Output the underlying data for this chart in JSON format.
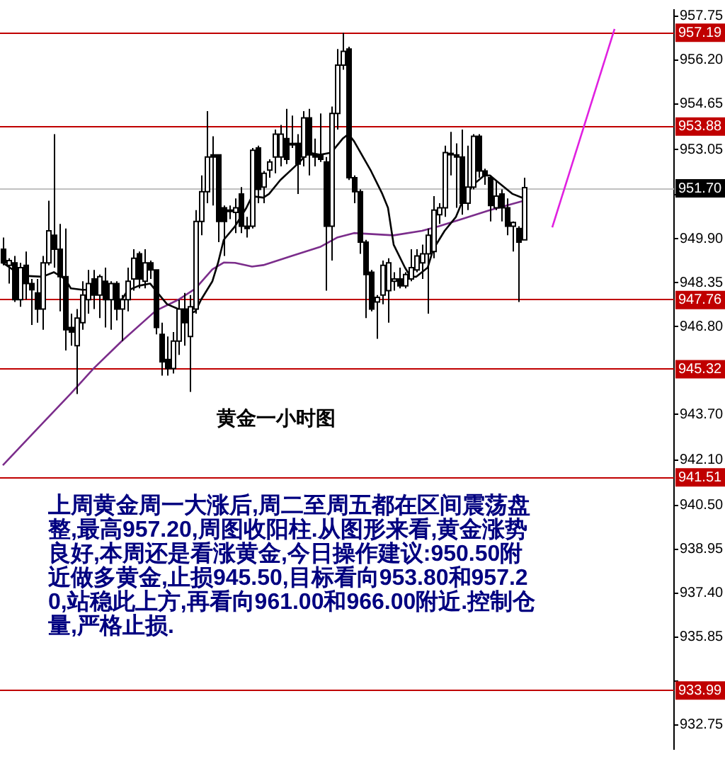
{
  "chart_data": {
    "type": "candlestick",
    "title": "黄金一小时图",
    "annotations": [
      "上周黄金周一大涨后,周二至周五都在区间震荡盘整,最高957.20,周图收阳柱.从图形来看,黄金涨势良好,本周还是看涨黄金,今日操作建议:950.50附近做多黄金,止损945.50,目标看向953.80和957.20,站稳此上方,再看向961.00和966.00附近.控制仓量,严格止损."
    ],
    "categories": [
      null,
      null,
      null,
      null,
      null,
      null,
      null,
      null,
      null,
      null,
      null,
      null,
      null,
      null,
      null,
      null,
      null,
      null,
      null,
      null,
      null,
      null,
      null,
      null,
      null,
      null,
      null,
      null,
      null,
      null,
      null,
      null,
      null,
      null,
      null,
      null,
      null,
      null,
      null,
      null,
      null,
      null,
      null,
      null,
      null,
      null,
      null,
      null,
      null,
      null,
      null,
      null,
      null,
      null,
      null,
      null,
      null,
      null,
      null,
      null,
      null,
      null,
      null,
      null,
      null,
      null,
      null,
      null,
      null,
      null,
      null,
      null,
      null,
      null,
      null,
      null,
      null,
      null,
      null,
      null,
      null,
      null,
      null,
      null,
      null,
      null,
      null,
      null,
      null,
      null,
      null,
      null,
      null,
      null,
      null,
      null,
      null,
      null,
      null,
      null,
      null,
      null,
      null,
      null,
      null,
      null,
      null,
      null,
      null,
      null,
      null,
      null,
      null,
      null,
      null,
      null,
      null,
      null,
      null
    ],
    "ohlc": [
      [
        949.53,
        949.94,
        948.96,
        949.05
      ],
      [
        948.96,
        949.21,
        948.32,
        949.13
      ],
      [
        949.05,
        949.29,
        947.67,
        947.75
      ],
      [
        947.75,
        949.05,
        947.5,
        948.88
      ],
      [
        948.96,
        949.45,
        947.75,
        948.32
      ],
      [
        948.32,
        948.48,
        946.86,
        948.1
      ],
      [
        947.99,
        948.48,
        946.94,
        947.42
      ],
      [
        947.42,
        949.29,
        946.69,
        949.05
      ],
      [
        949.05,
        951.24,
        948.96,
        950.18
      ],
      [
        950.02,
        953.59,
        948.88,
        949.53
      ],
      [
        949.53,
        950.42,
        947.34,
        948.56
      ],
      [
        948.56,
        950.26,
        945.96,
        946.69
      ],
      [
        946.77,
        947.26,
        946.13,
        946.61
      ],
      [
        946.13,
        947.42,
        944.42,
        947.1
      ],
      [
        946.94,
        948.4,
        946.69,
        947.91
      ],
      [
        947.75,
        948.8,
        947.26,
        948.32
      ],
      [
        948.48,
        948.8,
        947.42,
        947.91
      ],
      [
        947.91,
        948.64,
        947.1,
        948.56
      ],
      [
        948.4,
        948.88,
        946.77,
        947.75
      ],
      [
        947.75,
        948.4,
        946.69,
        948.32
      ],
      [
        948.32,
        948.4,
        947.02,
        947.42
      ],
      [
        947.42,
        947.91,
        946.29,
        947.75
      ],
      [
        947.75,
        948.88,
        947.34,
        948.4
      ],
      [
        948.48,
        949.53,
        948.07,
        949.21
      ],
      [
        949.37,
        949.45,
        948.15,
        948.48
      ],
      [
        948.4,
        949.53,
        948.15,
        949.05
      ],
      [
        949.05,
        949.13,
        948.48,
        948.8
      ],
      [
        948.8,
        948.8,
        946.53,
        946.77
      ],
      [
        946.53,
        946.94,
        945.07,
        945.56
      ],
      [
        945.64,
        946.45,
        945.07,
        945.32
      ],
      [
        945.32,
        946.61,
        945.15,
        946.29
      ],
      [
        946.29,
        947.75,
        945.8,
        947.42
      ],
      [
        947.42,
        947.99,
        946.13,
        946.94
      ],
      [
        946.45,
        947.91,
        944.5,
        947.5
      ],
      [
        947.42,
        950.91,
        947.26,
        950.51
      ],
      [
        950.51,
        952.13,
        950.02,
        951.56
      ],
      [
        951.56,
        954.4,
        951.15,
        952.78
      ],
      [
        952.86,
        953.51,
        951.07,
        952.78
      ],
      [
        952.86,
        952.86,
        949.78,
        950.51
      ],
      [
        950.99,
        951.07,
        949.29,
        950.51
      ],
      [
        950.91,
        951.07,
        950.59,
        950.91
      ],
      [
        950.83,
        951.32,
        950.1,
        950.99
      ],
      [
        951.48,
        951.72,
        950.1,
        950.34
      ],
      [
        950.34,
        950.67,
        949.94,
        950.26
      ],
      [
        950.34,
        953.1,
        950.26,
        953.02
      ],
      [
        953.1,
        953.18,
        951.15,
        951.64
      ],
      [
        951.72,
        952.29,
        951.15,
        952.21
      ],
      [
        952.32,
        952.7,
        952.05,
        952.61
      ],
      [
        952.78,
        953.75,
        952.21,
        953.59
      ],
      [
        952.78,
        953.91,
        952.45,
        953.59
      ],
      [
        953.43,
        954.48,
        952.53,
        952.7
      ],
      [
        953.26,
        954.24,
        953.1,
        953.26
      ],
      [
        953.26,
        953.59,
        951.48,
        952.53
      ],
      [
        952.78,
        954.4,
        952.45,
        954.16
      ],
      [
        954.16,
        954.48,
        952.13,
        952.86
      ],
      [
        952.86,
        953.43,
        952.45,
        952.78
      ],
      [
        952.86,
        954.32,
        952.61,
        952.7
      ],
      [
        952.61,
        952.78,
        948.07,
        950.34
      ],
      [
        950.34,
        954.56,
        949.13,
        954.32
      ],
      [
        954.32,
        956.59,
        953.75,
        956.02
      ],
      [
        956.02,
        957.16,
        955.86,
        956.51
      ],
      [
        956.59,
        956.67,
        951.97,
        952.05
      ],
      [
        952.05,
        952.13,
        951.15,
        951.56
      ],
      [
        951.56,
        951.64,
        949.37,
        949.78
      ],
      [
        949.78,
        949.86,
        947.1,
        948.64
      ],
      [
        948.72,
        948.8,
        947.34,
        947.42
      ],
      [
        947.67,
        947.91,
        946.37,
        947.83
      ],
      [
        947.91,
        949.13,
        947.59,
        948.96
      ],
      [
        948.07,
        949.21,
        946.94,
        949.05
      ],
      [
        948.4,
        948.72,
        948.07,
        948.48
      ],
      [
        948.48,
        948.88,
        948.15,
        948.24
      ],
      [
        948.24,
        948.72,
        948.15,
        948.64
      ],
      [
        948.48,
        949.53,
        948.4,
        948.88
      ],
      [
        948.8,
        949.53,
        948.72,
        949.29
      ],
      [
        949.05,
        949.69,
        948.48,
        949.37
      ],
      [
        949.37,
        950.26,
        947.26,
        950.02
      ],
      [
        949.45,
        951.4,
        949.21,
        950.91
      ],
      [
        950.75,
        951.15,
        950.42,
        950.99
      ],
      [
        950.99,
        953.18,
        950.67,
        952.94
      ],
      [
        952.91,
        953.67,
        952.13,
        952.91
      ],
      [
        952.86,
        953.26,
        950.99,
        952.78
      ],
      [
        952.78,
        953.75,
        950.75,
        951.15
      ],
      [
        951.15,
        953.18,
        950.91,
        951.72
      ],
      [
        951.72,
        953.59,
        951.64,
        953.51
      ],
      [
        953.51,
        953.59,
        952.05,
        952.29
      ],
      [
        952.29,
        952.37,
        951.8,
        952.13
      ],
      [
        952.05,
        952.13,
        950.51,
        951.07
      ],
      [
        950.99,
        951.97,
        950.91,
        951.4
      ],
      [
        951.48,
        951.64,
        950.51,
        950.99
      ],
      [
        950.99,
        951.32,
        950.02,
        950.34
      ],
      [
        950.34,
        950.51,
        949.45,
        950.47
      ],
      [
        950.26,
        950.34,
        947.67,
        949.78
      ],
      [
        949.86,
        952.05,
        949.86,
        951.7
      ],
      null,
      null,
      null,
      null,
      null,
      null,
      null,
      null,
      null,
      null,
      null,
      null,
      null,
      null,
      null,
      null,
      null,
      null,
      null,
      null,
      null,
      null,
      null,
      null,
      null,
      null
    ],
    "series": [
      {
        "type": "line",
        "color": "#000000",
        "values": [
          949.05,
          null,
          null,
          948.64,
          948.59,
          null,
          null,
          948.56,
          null,
          948.72,
          null,
          948.48,
          948.15,
          null,
          948.1,
          null,
          null,
          948.1,
          null,
          947.83,
          null,
          947.75,
          948.07,
          null,
          948.24,
          null,
          948.32,
          null,
          947.83,
          947.59,
          null,
          947.42,
          null,
          947.26,
          947.34,
          947.75,
          null,
          948.4,
          949.05,
          949.86,
          null,
          950.34,
          null,
          950.99,
          951.4,
          null,
          951.35,
          951.48,
          null,
          951.97,
          null,
          null,
          952.53,
          null,
          952.94,
          null,
          952.86,
          null,
          952.94,
          null,
          953.43,
          953.59,
          953.34,
          null,
          null,
          952.29,
          null,
          951.48,
          950.99,
          949.69,
          null,
          948.88,
          948.56,
          948.56,
          null,
          948.88,
          949.53,
          null,
          950.18,
          null,
          950.67,
          951.15,
          null,
          951.8,
          null,
          952.13,
          952.13,
          null,
          951.8,
          null,
          951.48,
          null,
          951.32,
          null,
          null,
          null,
          null,
          null,
          null,
          null,
          null,
          null,
          null,
          null,
          null,
          null,
          null,
          null,
          null,
          null,
          null,
          null,
          null,
          null,
          null,
          null,
          null,
          null,
          null
        ]
      },
      {
        "type": "line",
        "color": "#7b2d8b",
        "values": [
          941.91,
          null,
          null,
          null,
          null,
          null,
          943.18,
          null,
          null,
          null,
          null,
          null,
          944.44,
          null,
          null,
          null,
          945.32,
          null,
          null,
          null,
          null,
          946.29,
          null,
          null,
          null,
          null,
          null,
          947.36,
          null,
          null,
          null,
          947.75,
          null,
          null,
          948.14,
          null,
          null,
          948.82,
          null,
          949.06,
          null,
          949.05,
          null,
          null,
          948.92,
          null,
          948.97,
          null,
          null,
          null,
          null,
          949.29,
          null,
          null,
          null,
          null,
          949.61,
          null,
          null,
          949.94,
          null,
          null,
          950.1,
          null,
          null,
          null,
          null,
          null,
          null,
          950.02,
          null,
          null,
          null,
          null,
          950.18,
          null,
          null,
          950.34,
          null,
          null,
          null,
          950.59,
          null,
          null,
          null,
          null,
          950.91,
          null,
          null,
          null,
          null,
          null,
          951.24,
          null,
          null,
          null,
          null,
          null,
          null,
          null,
          null,
          null,
          null,
          null,
          null,
          null,
          null,
          null,
          null,
          null,
          null,
          null,
          null,
          null,
          null,
          null,
          null,
          null,
          null
        ]
      },
      {
        "type": "line",
        "color": "#e020e0",
        "values": [
          null,
          null,
          null,
          null,
          null,
          null,
          null,
          null,
          null,
          null,
          null,
          null,
          null,
          null,
          null,
          null,
          null,
          null,
          null,
          null,
          null,
          null,
          null,
          null,
          null,
          null,
          null,
          null,
          null,
          null,
          null,
          null,
          null,
          null,
          null,
          null,
          null,
          null,
          null,
          null,
          null,
          null,
          null,
          null,
          null,
          null,
          null,
          null,
          null,
          null,
          null,
          null,
          null,
          null,
          null,
          null,
          null,
          null,
          null,
          null,
          null,
          null,
          null,
          null,
          null,
          null,
          null,
          null,
          null,
          null,
          null,
          null,
          null,
          null,
          null,
          null,
          null,
          null,
          null,
          null,
          null,
          null,
          null,
          null,
          null,
          null,
          null,
          null,
          null,
          null,
          null,
          null,
          null,
          null,
          null,
          null,
          null,
          950.3,
          null,
          null,
          null,
          null,
          null,
          null,
          null,
          null,
          null,
          null,
          957.3,
          null,
          null,
          null,
          null,
          null,
          null,
          null,
          null,
          null,
          null
        ]
      }
    ],
    "ylim": [
      931.9,
      957.97
    ],
    "yticks": [
      957.75,
      {
        "value": 956.2,
        "label": "956.20"
      },
      954.65,
      953.05,
      {
        "value": 951.45,
        "label": null
      },
      {
        "value": 949.9,
        "label": "949.90"
      },
      948.35,
      {
        "value": 946.8,
        "label": "946.80"
      },
      {
        "value": 943.7,
        "label": "943.70"
      },
      {
        "value": 942.1,
        "label": "942.10"
      },
      {
        "value": 940.5,
        "label": "940.50"
      },
      938.95,
      {
        "value": 937.4,
        "label": "937.40"
      },
      935.85,
      {
        "value": 934.3,
        "label": null
      },
      932.75
    ],
    "ref_lines": [
      {
        "axis": "y",
        "value": 957.19,
        "label": "957.19",
        "color": "#c00000"
      },
      {
        "axis": "y",
        "value": 953.88,
        "label": "953.88",
        "color": "#c00000"
      },
      {
        "axis": "y",
        "value": 951.7,
        "label": "951.70",
        "color": "#c0c0c0"
      },
      {
        "axis": "y",
        "value": 947.76,
        "label": "947.76",
        "color": "#c00000"
      },
      {
        "axis": "y",
        "value": 945.32,
        "label": "945.32",
        "color": "#c00000"
      },
      {
        "axis": "y",
        "value": 941.51,
        "label": "941.51",
        "color": "#c00000"
      },
      {
        "axis": "y",
        "value": 933.99,
        "label": "933.99",
        "color": "#c00000"
      }
    ],
    "grid": false,
    "legend": false,
    "marker": "none",
    "tick_labels": "y"
  }
}
